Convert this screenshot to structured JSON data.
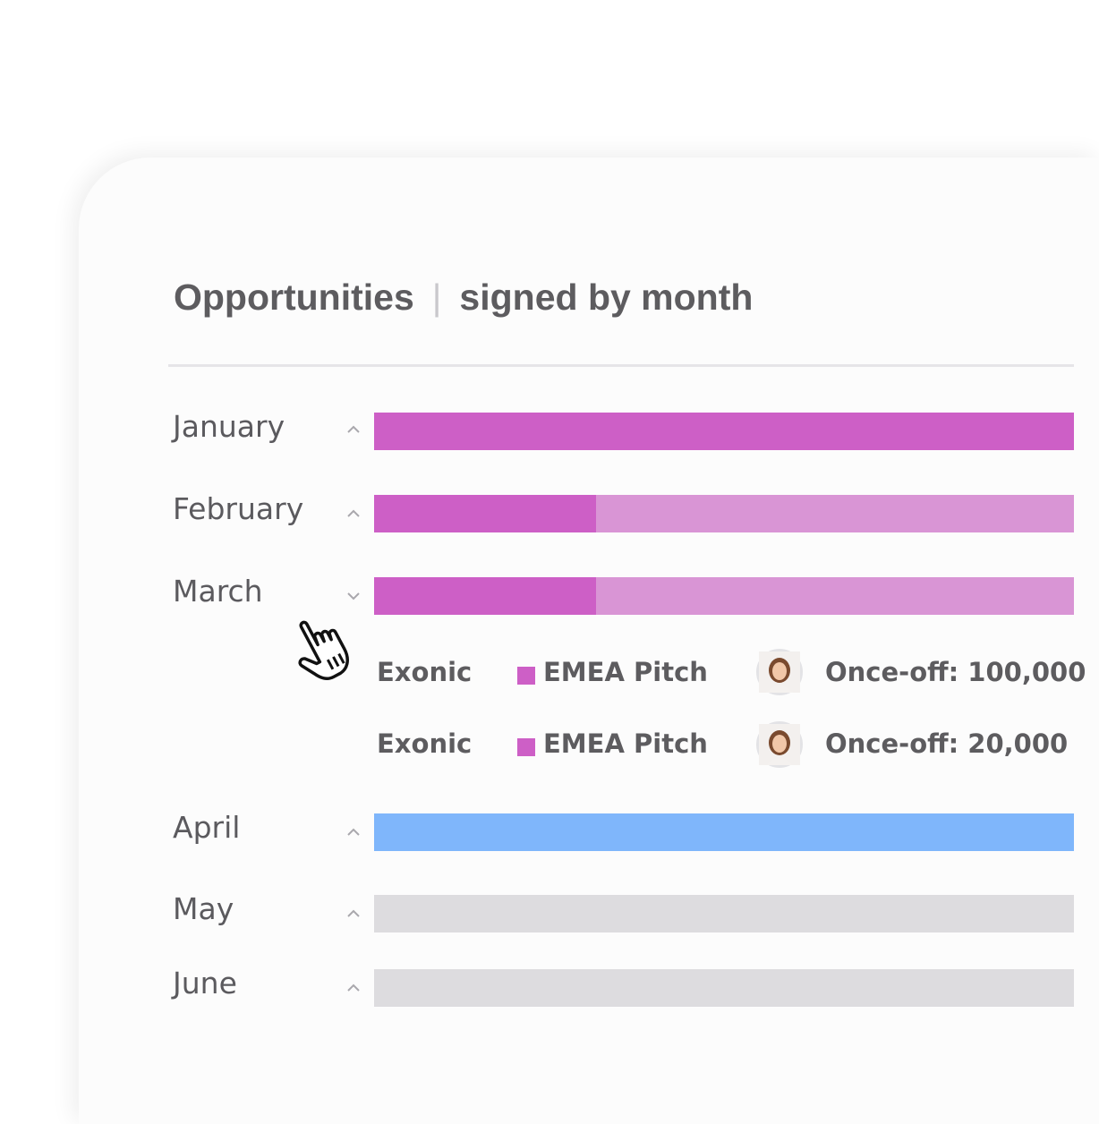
{
  "widget": {
    "title": "Opportunities",
    "subtitle": "signed by month",
    "separator": "|"
  },
  "colors": {
    "magenta_dark": "#cd5fc6",
    "magenta_light": "#d995d5",
    "blue": "#7fb6fb",
    "grey": "#dddcdf"
  },
  "months": [
    {
      "label": "January",
      "chevron": "chevron-up-icon",
      "expanded": false,
      "signed_fraction": 1.0,
      "bar_color": "magenta"
    },
    {
      "label": "February",
      "chevron": "chevron-up-icon",
      "expanded": false,
      "signed_fraction": 0.32,
      "bar_color": "magenta"
    },
    {
      "label": "March",
      "chevron": "chevron-down-icon",
      "expanded": true,
      "signed_fraction": 0.32,
      "bar_color": "magenta"
    },
    {
      "label": "April",
      "chevron": "chevron-up-icon",
      "expanded": false,
      "signed_fraction": 1.0,
      "bar_color": "blue"
    },
    {
      "label": "May",
      "chevron": "chevron-up-icon",
      "expanded": false,
      "signed_fraction": 0.0,
      "bar_color": "grey"
    },
    {
      "label": "June",
      "chevron": "chevron-up-icon",
      "expanded": false,
      "signed_fraction": 0.0,
      "bar_color": "grey"
    }
  ],
  "march_details": [
    {
      "company": "Exonic",
      "campaign": "EMEA Pitch",
      "owner_icon": "person-avatar-icon",
      "amount": "Once-off: 100,000"
    },
    {
      "company": "Exonic",
      "campaign": "EMEA Pitch",
      "owner_icon": "person-avatar-icon",
      "amount": "Once-off: 20,000"
    }
  ],
  "cursor_icon": "hand-pointer-icon"
}
